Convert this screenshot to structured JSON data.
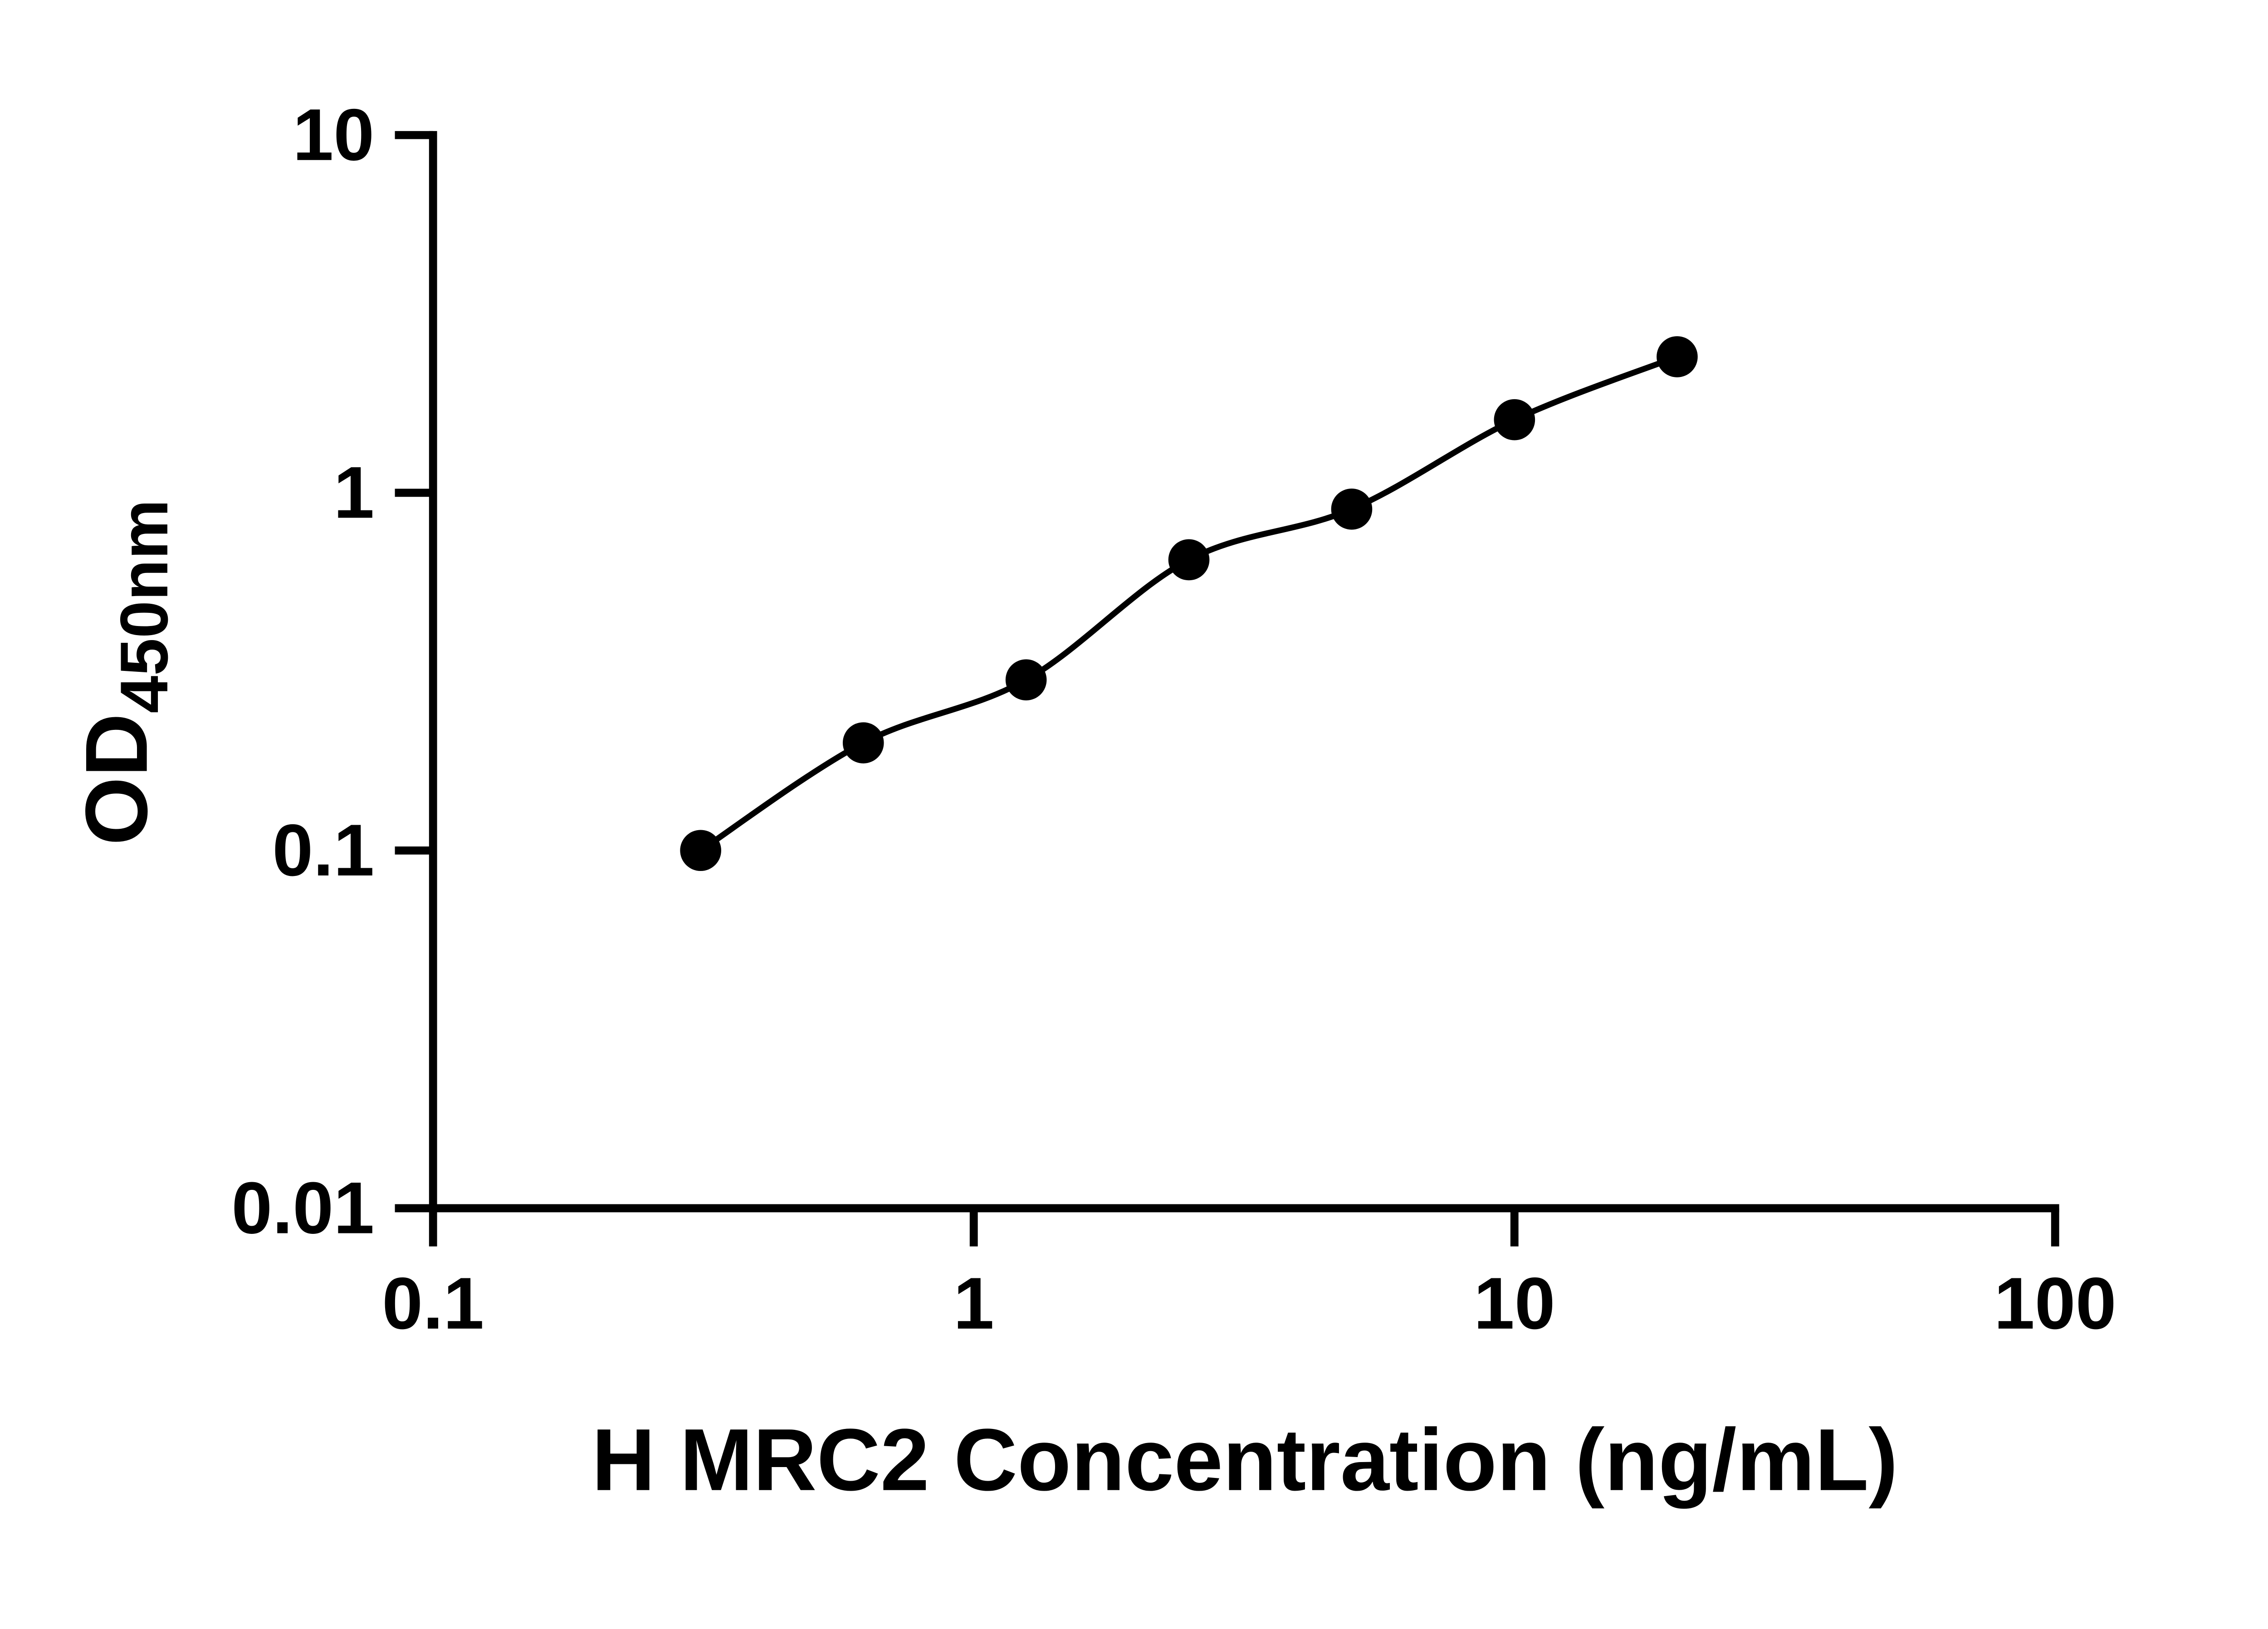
{
  "figure": {
    "background_color": "#ffffff"
  },
  "chart_data": {
    "type": "scatter",
    "title": "",
    "xlabel": "H MRC2 Concentration (ng/mL)",
    "ylabel": "OD450nm",
    "ylabel_base": "OD",
    "ylabel_sub": "450nm",
    "x_scale": "log",
    "y_scale": "log",
    "xlim": [
      0.1,
      100
    ],
    "ylim": [
      0.01,
      10
    ],
    "x_ticks": [
      0.1,
      1,
      10,
      100
    ],
    "x_tick_labels": [
      "0.1",
      "1",
      "10",
      "100"
    ],
    "y_ticks": [
      0.01,
      0.1,
      1,
      10
    ],
    "y_tick_labels": [
      "0.01",
      "0.1",
      "1",
      "10"
    ],
    "grid": false,
    "legend_position": "none",
    "x": [
      0.3125,
      0.625,
      1.25,
      2.5,
      5,
      10,
      20
    ],
    "y": [
      0.1,
      0.2,
      0.3,
      0.65,
      0.9,
      1.6,
      2.4
    ],
    "marker": "circle",
    "marker_color": "#000000",
    "line_color": "#000000",
    "axis_color": "#000000"
  }
}
